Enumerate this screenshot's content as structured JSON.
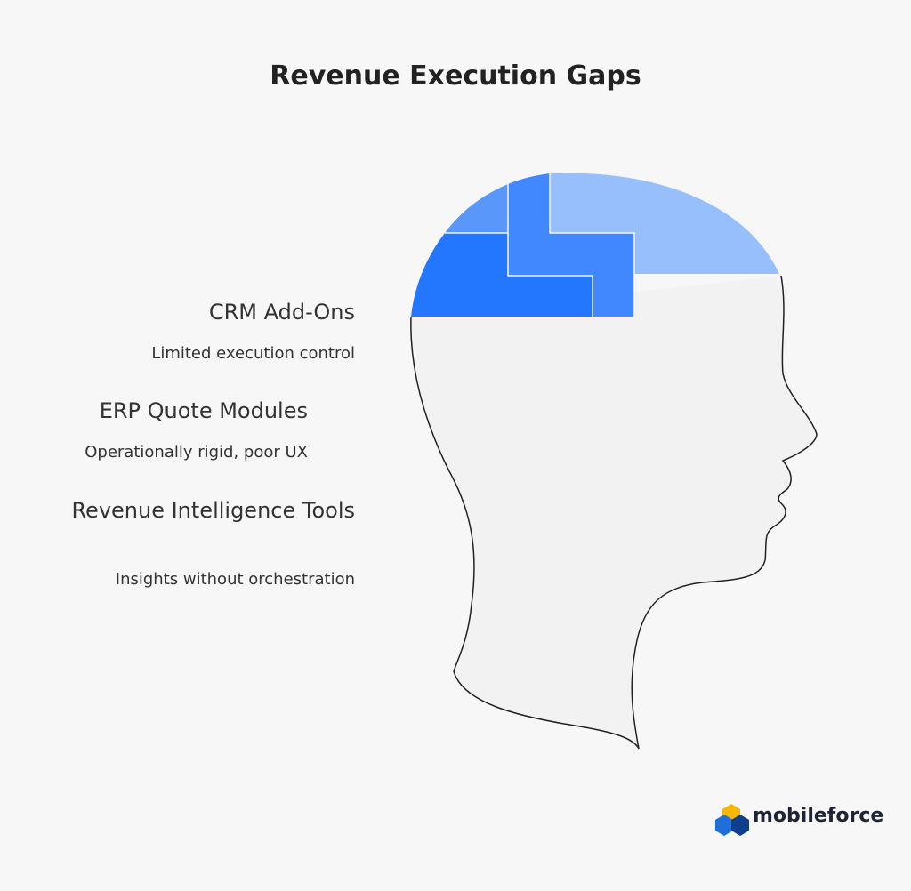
{
  "title": "Revenue Execution Gaps",
  "items": [
    {
      "label": "CRM Add-Ons",
      "description": "Limited execution control"
    },
    {
      "label": "ERP Quote Modules",
      "description": "Operationally rigid, poor UX"
    },
    {
      "label": "Revenue Intelligence Tools",
      "description": "Insights without orchestration"
    }
  ],
  "logo": {
    "text": "mobileforce"
  }
}
